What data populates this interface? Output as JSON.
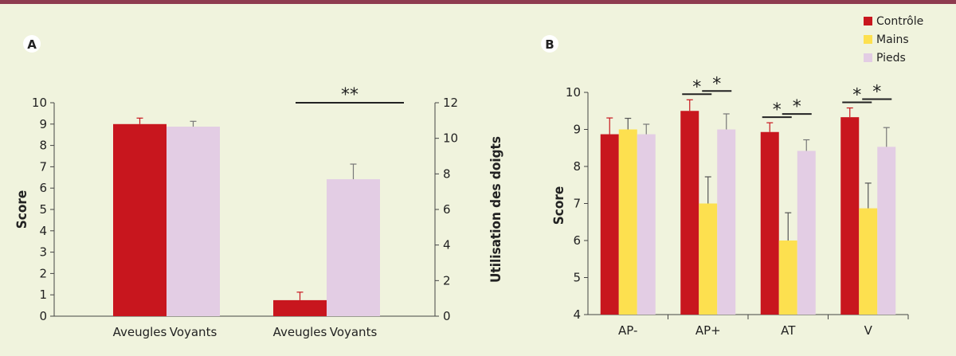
{
  "colors": {
    "controle": "#c8161e",
    "mains": "#fde04f",
    "pieds": "#e3cde4",
    "axis": "#444444",
    "background": "#f0f3dd",
    "top_bar": "#8e3b4f"
  },
  "chart_data": [
    {
      "panel": "A",
      "type": "bar",
      "ylabel": "Score",
      "ylabel_right": "Utilisation des doigts",
      "ylim": [
        0,
        10
      ],
      "ylim_right": [
        0,
        12
      ],
      "yticks": [
        "0",
        "1",
        "2",
        "3",
        "4",
        "5",
        "6",
        "7",
        "8",
        "9",
        "10"
      ],
      "yticks_right": [
        "0",
        "2",
        "4",
        "6",
        "8",
        "10",
        "12"
      ],
      "groups": [
        {
          "axis": "left",
          "bars": [
            {
              "label": "Aveugles",
              "value": 9.0,
              "error": 0.28,
              "color": "#c8161e"
            },
            {
              "label": "Voyants",
              "value": 8.88,
              "error": 0.25,
              "color": "#e3cde4"
            }
          ]
        },
        {
          "axis": "right",
          "bars": [
            {
              "label": "Aveugles",
              "value": 0.9,
              "error": 0.45,
              "color": "#c8161e"
            },
            {
              "label": "Voyants",
              "value": 7.7,
              "error": 0.85,
              "color": "#e3cde4"
            }
          ],
          "significance": "**"
        }
      ]
    },
    {
      "panel": "B",
      "type": "bar",
      "ylabel": "Score",
      "ylim": [
        4,
        10
      ],
      "yticks": [
        "4",
        "5",
        "6",
        "7",
        "8",
        "9",
        "10"
      ],
      "categories": [
        "AP-",
        "AP+",
        "AT",
        "V"
      ],
      "series": [
        {
          "name": "Contrôle",
          "color": "#c8161e",
          "values": [
            8.87,
            9.5,
            8.93,
            9.33
          ],
          "errors": [
            0.44,
            0.3,
            0.25,
            0.25
          ]
        },
        {
          "name": "Mains",
          "color": "#fde04f",
          "values": [
            9.0,
            7.0,
            6.0,
            6.87
          ],
          "errors": [
            0.3,
            0.72,
            0.75,
            0.68
          ]
        },
        {
          "name": "Pieds",
          "color": "#e3cde4",
          "values": [
            8.87,
            9.0,
            8.42,
            8.53
          ],
          "errors": [
            0.27,
            0.42,
            0.3,
            0.52
          ]
        }
      ],
      "significance": [
        {
          "category": "AP+",
          "pairs": [
            "*",
            "*"
          ]
        },
        {
          "category": "AT",
          "pairs": [
            "*",
            "*"
          ]
        },
        {
          "category": "V",
          "pairs": [
            "*",
            "*"
          ]
        }
      ],
      "legend": "top-right"
    }
  ]
}
